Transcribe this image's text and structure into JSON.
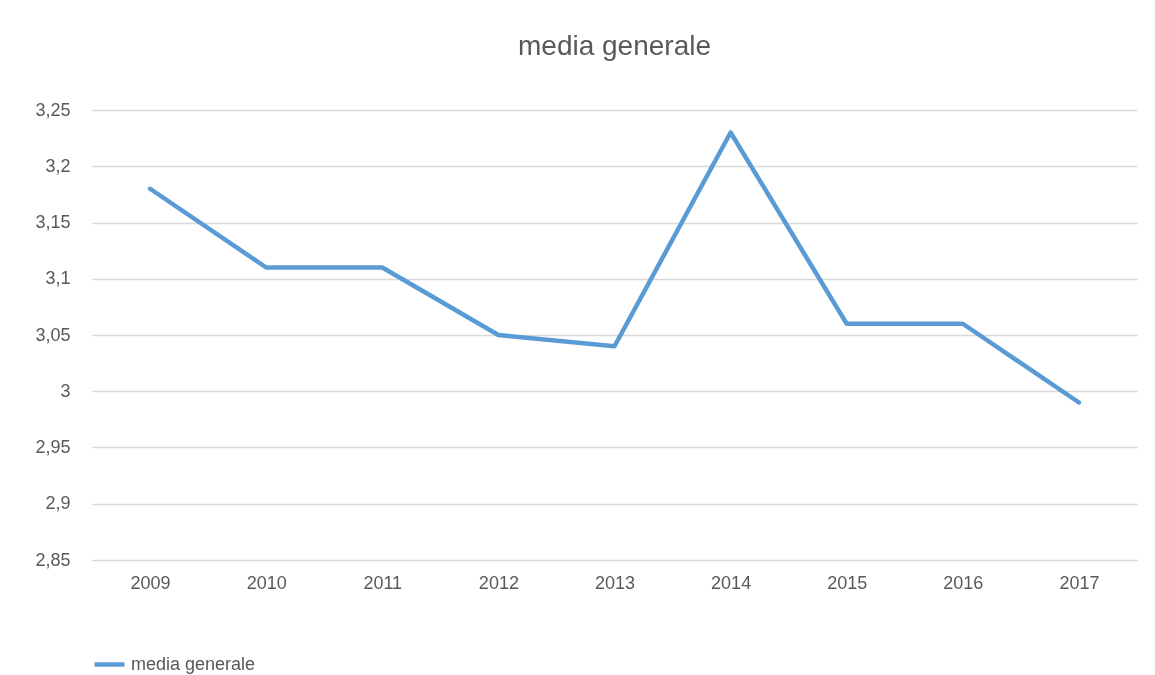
{
  "chart_data": {
    "type": "line",
    "title": "media generale",
    "categories": [
      "2009",
      "2010",
      "2011",
      "2012",
      "2013",
      "2014",
      "2015",
      "2016",
      "2017"
    ],
    "series": [
      {
        "name": "media generale",
        "color": "#5b9bd5",
        "values": [
          3.18,
          3.11,
          3.11,
          3.05,
          3.04,
          3.23,
          3.06,
          3.06,
          2.99
        ]
      }
    ],
    "ylim": [
      2.85,
      3.25
    ],
    "yticks": [
      {
        "value": 2.85,
        "label": "2,85"
      },
      {
        "value": 2.9,
        "label": "2,9"
      },
      {
        "value": 2.95,
        "label": "2,95"
      },
      3,
      {
        "value": 3.05,
        "label": "3,05"
      },
      {
        "value": 3.1,
        "label": "3,1"
      },
      {
        "value": 3.15,
        "label": "3,15"
      },
      {
        "value": 3.2,
        "label": "3,2"
      },
      {
        "value": 3.25,
        "label": "3,25"
      }
    ],
    "grid": "y",
    "legend": "bottom",
    "marker": "none",
    "line_style": "solid"
  }
}
